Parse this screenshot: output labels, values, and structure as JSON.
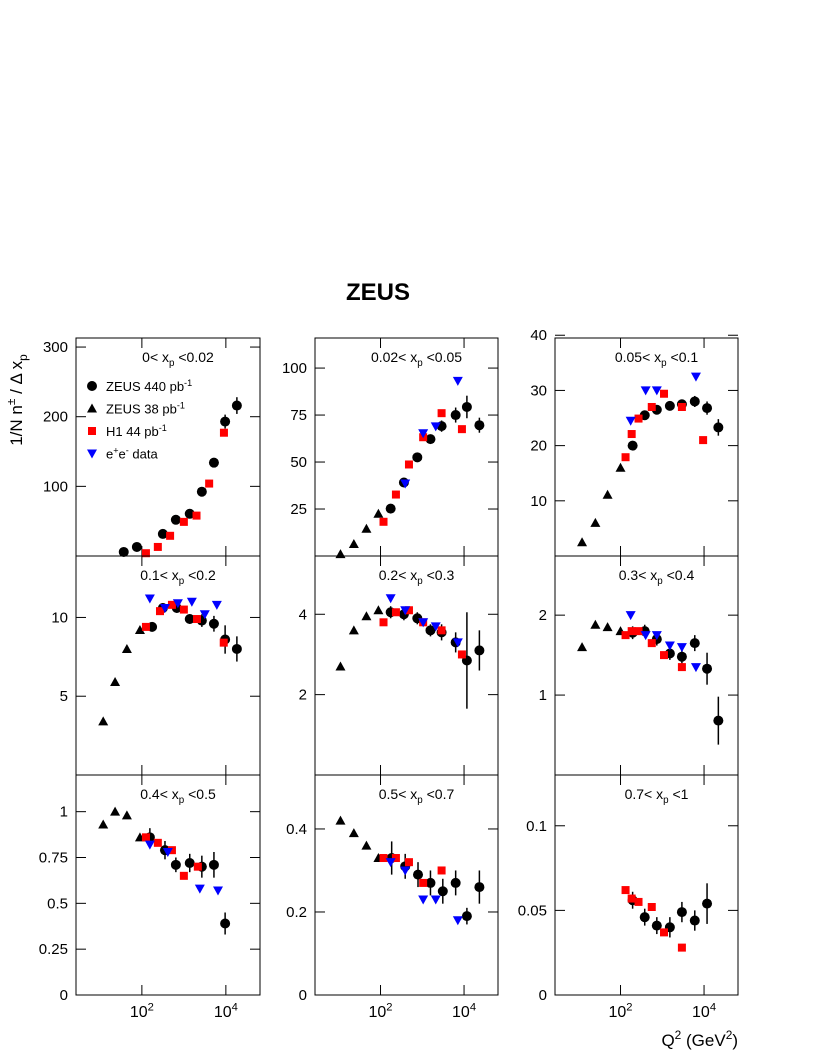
{
  "title": "ZEUS",
  "ylabel": [
    "1/N n",
    "±",
    " / Δ x",
    "p"
  ],
  "xlabel": [
    "Q",
    "2",
    " (GeV",
    "2",
    ")"
  ],
  "xscale": "log",
  "xlim": [
    2.7,
    65000
  ],
  "xticks": [
    {
      "value": 100,
      "label": [
        "10",
        "2"
      ]
    },
    {
      "value": 10000,
      "label": [
        "10",
        "4"
      ]
    }
  ],
  "legend": [
    {
      "name": [
        "ZEUS 440 pb",
        "-1"
      ],
      "marker": "circle",
      "color": "#000000"
    },
    {
      "name": [
        "ZEUS 38 pb",
        "-1"
      ],
      "marker": "triangle",
      "color": "#000000"
    },
    {
      "name": [
        "H1 44 pb",
        "-1"
      ],
      "marker": "square",
      "color": "#ff0000"
    },
    {
      "name": [
        "e",
        "+",
        "e",
        "-",
        " data"
      ],
      "marker": "triangle-down",
      "color": "#0000ff"
    }
  ],
  "chart_data": [
    {
      "type": "scatter",
      "title": [
        "0< x",
        "p",
        " <0.02"
      ],
      "ylim": [
        0,
        313
      ],
      "yticks": [
        100,
        200,
        300
      ],
      "series": [
        {
          "marker": "circle",
          "color": "#000000",
          "x": [
            37,
            76,
            316,
            645,
            1380,
            2680,
            5200,
            9600,
            18300
          ],
          "values": [
            5.8,
            13,
            31.7,
            52,
            60.6,
            92.3,
            134,
            193,
            216
          ],
          "errors": [
            1,
            1,
            1.5,
            2,
            3,
            4,
            6,
            10,
            12
          ]
        },
        {
          "marker": "square",
          "color": "#ff0000",
          "x": [
            125,
            240,
            470,
            1000,
            2000,
            4000,
            9000
          ],
          "values": [
            4,
            13,
            29,
            49,
            58,
            104,
            177
          ]
        }
      ]
    },
    {
      "type": "scatter",
      "title": [
        "0.02< x",
        "p",
        " <0.05"
      ],
      "ylim": [
        0,
        116
      ],
      "yticks": [
        25,
        50,
        75,
        100
      ],
      "series": [
        {
          "marker": "triangle",
          "color": "#000000",
          "x": [
            11,
            23,
            46,
            89
          ],
          "values": [
            1,
            6.4,
            14.5,
            22.5
          ]
        },
        {
          "marker": "circle",
          "color": "#000000",
          "x": [
            175,
            363,
            760,
            1570,
            2900,
            6300,
            11700,
            23300
          ],
          "values": [
            25.2,
            39.1,
            52.5,
            62.2,
            69.1,
            75,
            79.3,
            69.6
          ],
          "errors": [
            1,
            1.5,
            1.5,
            2,
            3,
            4,
            6,
            4
          ]
        },
        {
          "marker": "square",
          "color": "#ff0000",
          "x": [
            118,
            234,
            480,
            1050,
            2900,
            8900
          ],
          "values": [
            18.2,
            32.7,
            48.7,
            63.2,
            76,
            67.5
          ]
        },
        {
          "marker": "triangle-down",
          "color": "#0000ff",
          "x": [
            390,
            1050,
            2100,
            7100
          ],
          "values": [
            38.6,
            65.3,
            69,
            93.2
          ]
        }
      ]
    },
    {
      "type": "scatter",
      "title": [
        "0.05< x",
        "p",
        " <0.1"
      ],
      "ylim": [
        0,
        39.5
      ],
      "yticks": [
        10,
        20,
        30,
        40
      ],
      "series": [
        {
          "marker": "triangle",
          "color": "#000000",
          "x": [
            12,
            25,
            49,
            100
          ],
          "values": [
            2.5,
            6,
            11.1,
            16
          ]
        },
        {
          "marker": "circle",
          "color": "#000000",
          "x": [
            195,
            380,
            740,
            1520,
            2950,
            6000,
            11800,
            22000
          ],
          "values": [
            20,
            25.5,
            26.5,
            27.2,
            27.5,
            28,
            26.8,
            23.3
          ],
          "errors": [
            0.6,
            0.6,
            0.6,
            0.7,
            0.8,
            1,
            1.2,
            1.5
          ]
        },
        {
          "marker": "square",
          "color": "#ff0000",
          "x": [
            132,
            185,
            270,
            560,
            1100,
            2950,
            9500
          ],
          "values": [
            17.9,
            22.1,
            24.9,
            27,
            29.4,
            27,
            21
          ]
        },
        {
          "marker": "triangle-down",
          "color": "#0000ff",
          "x": [
            175,
            400,
            740,
            6400
          ],
          "values": [
            24.5,
            30,
            30,
            32.5
          ]
        }
      ]
    },
    {
      "type": "scatter",
      "title": [
        "0.1< x",
        "p",
        " <0.2"
      ],
      "ylim": [
        0,
        13.9
      ],
      "yticks": [
        5,
        10
      ],
      "series": [
        {
          "marker": "triangle",
          "color": "#000000",
          "x": [
            12,
            23,
            44,
            90
          ],
          "values": [
            3.4,
            5.9,
            8,
            9.2
          ]
        },
        {
          "marker": "circle",
          "color": "#000000",
          "x": [
            175,
            316,
            680,
            1380,
            2680,
            5200,
            9600,
            18300
          ],
          "values": [
            9.4,
            10.6,
            10.6,
            9.9,
            9.8,
            9.6,
            8.6,
            8.0
          ],
          "errors": [
            0.3,
            0.3,
            0.3,
            0.3,
            0.4,
            0.5,
            0.9,
            0.8
          ]
        },
        {
          "marker": "square",
          "color": "#ff0000",
          "x": [
            125,
            270,
            520,
            1000,
            2050,
            8900
          ],
          "values": [
            9.4,
            10.4,
            10.8,
            10.5,
            9.9,
            8.4
          ]
        },
        {
          "marker": "triangle-down",
          "color": "#0000ff",
          "x": [
            155,
            355,
            720,
            1550,
            3150,
            6100
          ],
          "values": [
            11.2,
            10.6,
            10.9,
            11,
            10.2,
            10.8
          ]
        }
      ]
    },
    {
      "type": "scatter",
      "title": [
        "0.2< x",
        "p",
        " <0.3"
      ],
      "ylim": [
        0,
        5.45
      ],
      "yticks": [
        2,
        4
      ],
      "series": [
        {
          "marker": "triangle",
          "color": "#000000",
          "x": [
            11,
            23,
            46,
            89
          ],
          "values": [
            2.7,
            3.6,
            3.95,
            4.1
          ]
        },
        {
          "marker": "circle",
          "color": "#000000",
          "x": [
            175,
            363,
            760,
            1570,
            2900,
            6300,
            11700,
            23300
          ],
          "values": [
            4.05,
            4.0,
            3.9,
            3.6,
            3.55,
            3.3,
            2.85,
            3.1
          ],
          "errors": [
            0.15,
            0.15,
            0.15,
            0.15,
            0.2,
            0.25,
            1.2,
            0.5
          ]
        },
        {
          "marker": "square",
          "color": "#ff0000",
          "x": [
            118,
            234,
            480,
            1050,
            2900,
            8900
          ],
          "values": [
            3.8,
            4.05,
            4.1,
            3.8,
            3.6,
            3.0
          ]
        },
        {
          "marker": "triangle-down",
          "color": "#0000ff",
          "x": [
            175,
            390,
            1050,
            2100,
            7100
          ],
          "values": [
            4.4,
            4.1,
            3.8,
            3.7,
            3.3
          ]
        }
      ]
    },
    {
      "type": "scatter",
      "title": [
        "0.3< x",
        "p",
        " <0.4"
      ],
      "ylim": [
        0,
        2.74
      ],
      "yticks": [
        1,
        2
      ],
      "series": [
        {
          "marker": "triangle",
          "color": "#000000",
          "x": [
            12,
            25,
            49,
            100
          ],
          "values": [
            1.6,
            1.88,
            1.85,
            1.8
          ]
        },
        {
          "marker": "circle",
          "color": "#000000",
          "x": [
            195,
            380,
            740,
            1520,
            2950,
            6000,
            11800,
            22000
          ],
          "values": [
            1.78,
            1.8,
            1.7,
            1.52,
            1.48,
            1.65,
            1.33,
            0.68
          ],
          "errors": [
            0.08,
            0.08,
            0.08,
            0.08,
            0.1,
            0.1,
            0.2,
            0.3
          ]
        },
        {
          "marker": "square",
          "color": "#ff0000",
          "x": [
            132,
            185,
            270,
            560,
            1100,
            2950
          ],
          "values": [
            1.75,
            1.8,
            1.8,
            1.65,
            1.5,
            1.35
          ]
        },
        {
          "marker": "triangle-down",
          "color": "#0000ff",
          "x": [
            175,
            400,
            740,
            1520,
            2950,
            6400
          ],
          "values": [
            2.0,
            1.75,
            1.75,
            1.62,
            1.6,
            1.35
          ]
        }
      ]
    },
    {
      "type": "scatter",
      "title": [
        "0.4< x",
        "p",
        " <0.5"
      ],
      "ylim": [
        0,
        1.2
      ],
      "yticks": [
        0,
        0.25,
        0.5,
        0.75,
        1
      ],
      "series": [
        {
          "marker": "triangle",
          "color": "#000000",
          "x": [
            12,
            23,
            44,
            90
          ],
          "values": [
            0.93,
            1.0,
            0.98,
            0.86
          ]
        },
        {
          "marker": "circle",
          "color": "#000000",
          "x": [
            155,
            355,
            645,
            1380,
            2680,
            5200,
            9600
          ],
          "values": [
            0.86,
            0.79,
            0.71,
            0.72,
            0.7,
            0.71,
            0.39
          ],
          "errors": [
            0.05,
            0.05,
            0.04,
            0.05,
            0.06,
            0.07,
            0.06
          ]
        },
        {
          "marker": "square",
          "color": "#ff0000",
          "x": [
            125,
            240,
            520,
            1000,
            2150
          ],
          "values": [
            0.86,
            0.83,
            0.79,
            0.65,
            0.7
          ]
        },
        {
          "marker": "triangle-down",
          "color": "#0000ff",
          "x": [
            155,
            415,
            2400,
            6500
          ],
          "values": [
            0.82,
            0.78,
            0.58,
            0.57
          ]
        }
      ]
    },
    {
      "type": "scatter",
      "title": [
        "0.5< x",
        "p",
        " <0.7"
      ],
      "ylim": [
        0,
        0.53
      ],
      "yticks": [
        0,
        0.2,
        0.4
      ],
      "series": [
        {
          "marker": "triangle",
          "color": "#000000",
          "x": [
            11,
            23,
            46,
            89
          ],
          "values": [
            0.42,
            0.39,
            0.36,
            0.33
          ]
        },
        {
          "marker": "circle",
          "color": "#000000",
          "x": [
            185,
            390,
            790,
            1570,
            3100,
            6300,
            11700,
            23300
          ],
          "values": [
            0.33,
            0.31,
            0.29,
            0.27,
            0.25,
            0.27,
            0.19,
            0.26
          ],
          "errors": [
            0.04,
            0.03,
            0.03,
            0.03,
            0.03,
            0.03,
            0.02,
            0.04
          ]
        },
        {
          "marker": "square",
          "color": "#ff0000",
          "x": [
            118,
            234,
            480,
            1050,
            2900
          ],
          "values": [
            0.33,
            0.33,
            0.32,
            0.27,
            0.3
          ]
        },
        {
          "marker": "triangle-down",
          "color": "#0000ff",
          "x": [
            175,
            390,
            1050,
            2100,
            7100
          ],
          "values": [
            0.32,
            0.3,
            0.23,
            0.23,
            0.18
          ]
        }
      ]
    },
    {
      "type": "scatter",
      "title": [
        "0.7< x",
        "p",
        " <1"
      ],
      "ylim": [
        0,
        0.13
      ],
      "yticks": [
        0,
        0.05,
        0.1
      ],
      "series": [
        {
          "marker": "circle",
          "color": "#000000",
          "x": [
            195,
            380,
            740,
            1520,
            2950,
            6000,
            11800
          ],
          "values": [
            0.056,
            0.046,
            0.041,
            0.04,
            0.049,
            0.044,
            0.054
          ],
          "errors": [
            0.005,
            0.005,
            0.005,
            0.006,
            0.006,
            0.006,
            0.012
          ]
        },
        {
          "marker": "square",
          "color": "#ff0000",
          "x": [
            132,
            185,
            270,
            560,
            1100,
            2950
          ],
          "values": [
            0.062,
            0.057,
            0.055,
            0.052,
            0.037,
            0.028
          ]
        }
      ]
    }
  ]
}
